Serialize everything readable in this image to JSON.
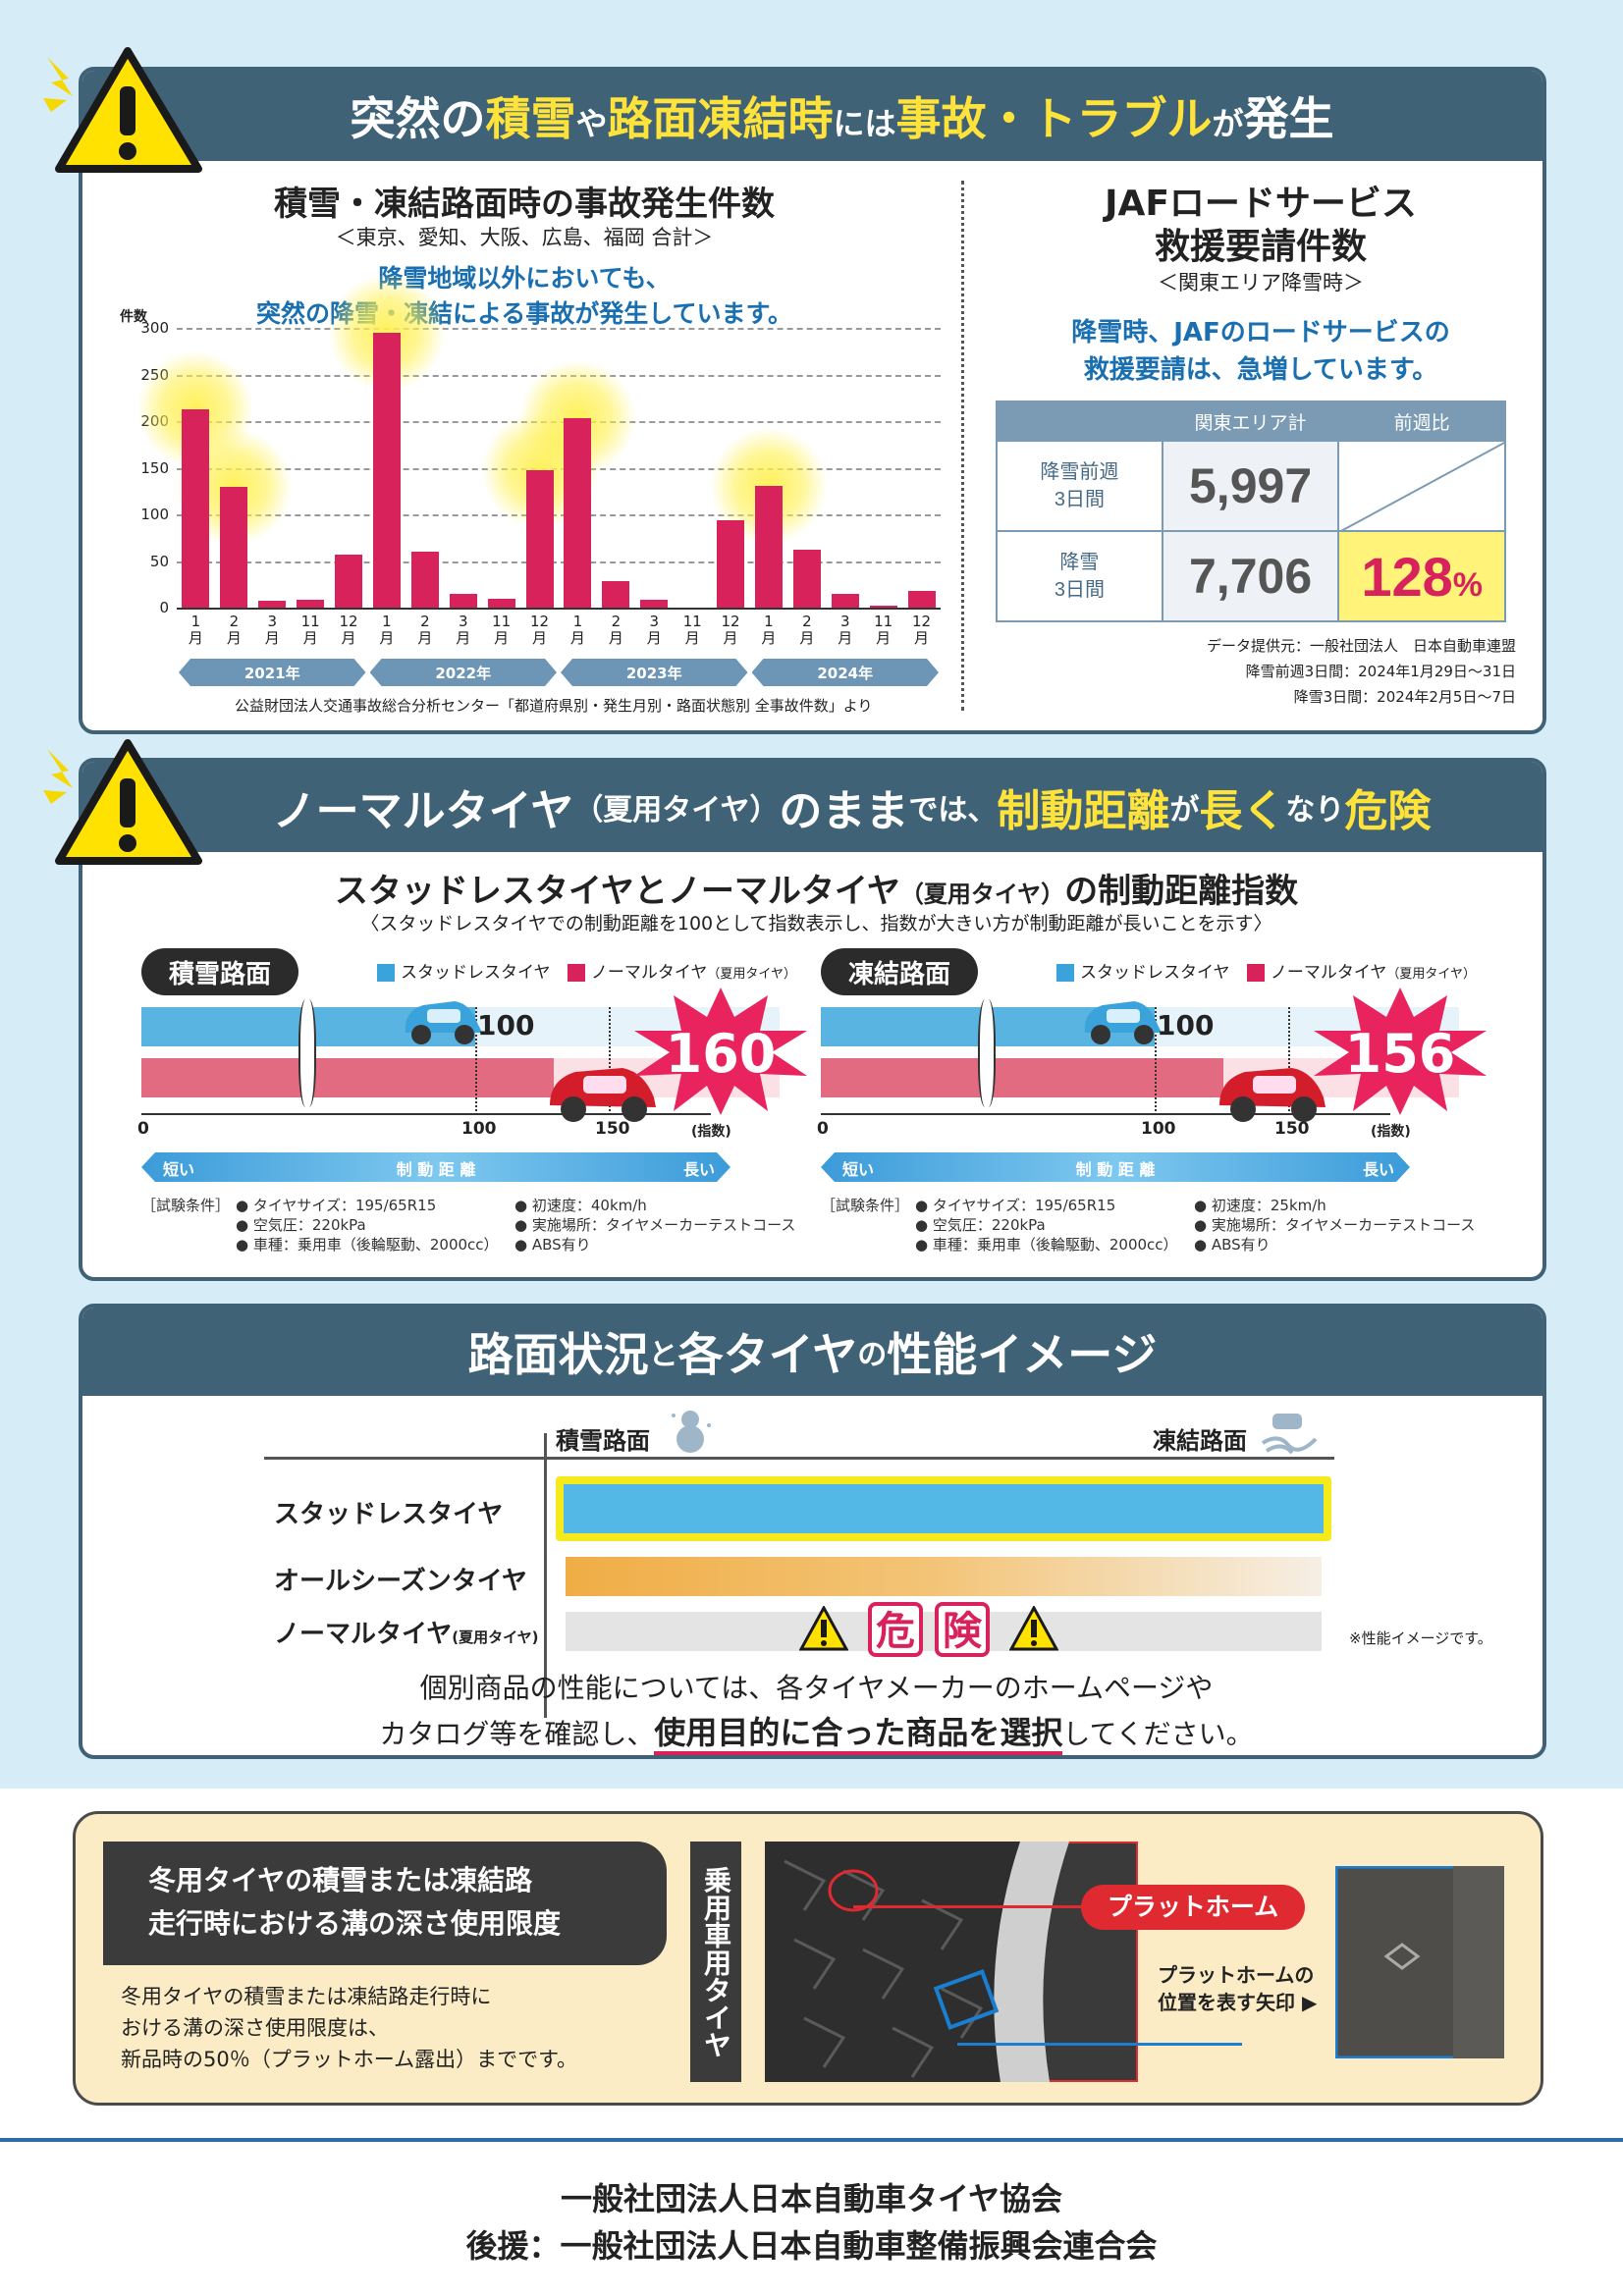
{
  "section1": {
    "heading": [
      {
        "t": "突然の",
        "c": "w"
      },
      {
        "t": "積雪",
        "c": "y"
      },
      {
        "t": "や",
        "c": "s"
      },
      {
        "t": "路面凍結時",
        "c": "y"
      },
      {
        "t": "には",
        "c": "s"
      },
      {
        "t": "事故・トラブル",
        "c": "y"
      },
      {
        "t": "が",
        "c": "s"
      },
      {
        "t": "発生",
        "c": "w"
      }
    ],
    "chart_title": "積雪・凍結路面時の事故発生件数",
    "chart_subtitle": "＜東京、愛知、大阪、広島、福岡 合計＞",
    "chart_note1": "降雪地域以外においても、",
    "chart_note2": "突然の降雪・凍結による事故が発生しています。",
    "source": "公益財団法人交通事故総合分析センター「都道府県別・発生月別・路面状態別 全事故件数」より",
    "jaf_title1": "JAFロードサービス",
    "jaf_title2": "救援要請件数",
    "jaf_subtitle": "＜関東エリア降雪時＞",
    "jaf_note1": "降雪時、JAFのロードサービスの",
    "jaf_note2": "救援要請は、急増しています。",
    "jaf_table": {
      "col1": "関東エリア計",
      "col2": "前週比",
      "row1_label1": "降雪前週",
      "row1_label2": "3日間",
      "row1_value": "5,997",
      "row2_label1": "降雪",
      "row2_label2": "3日間",
      "row2_value": "7,706",
      "row2_ratio": "128",
      "row2_ratio_unit": "%"
    },
    "jaf_source1": "データ提供元：一般社団法人　日本自動車連盟",
    "jaf_source2": "降雪前週3日間：2024年1月29日〜31日",
    "jaf_source3": "降雪3日間：2024年2月5日〜7日"
  },
  "chart_data": {
    "type": "bar",
    "ylabel": "件数",
    "ylim": [
      0,
      300
    ],
    "yticks": [
      0,
      50,
      100,
      150,
      200,
      250,
      300
    ],
    "grid": true,
    "month_labels": [
      "1",
      "2",
      "3",
      "11",
      "12",
      "1",
      "2",
      "3",
      "11",
      "12",
      "1",
      "2",
      "3",
      "11",
      "12",
      "1",
      "2",
      "3",
      "11",
      "12"
    ],
    "month_unit": "月",
    "years": [
      "2021年",
      "2022年",
      "2023年",
      "2024年"
    ],
    "categories": [
      "2021-1",
      "2021-2",
      "2021-3",
      "2021-11",
      "2021-12",
      "2022-1",
      "2022-2",
      "2022-3",
      "2022-11",
      "2022-12",
      "2023-1",
      "2023-2",
      "2023-3",
      "2023-11",
      "2023-12",
      "2024-1",
      "2024-2",
      "2024-3",
      "2024-11",
      "2024-12"
    ],
    "values": [
      213,
      130,
      7,
      8,
      57,
      295,
      60,
      15,
      10,
      147,
      203,
      28,
      8,
      0,
      94,
      131,
      62,
      15,
      2,
      18
    ],
    "highlighted": [
      0,
      1,
      5,
      9,
      10,
      15
    ],
    "bar_color": "#d7225b"
  },
  "section2": {
    "heading_a": "ノーマルタイヤ",
    "heading_b": "（夏用タイヤ）",
    "heading_c": "のまま",
    "heading_d": "では、",
    "heading_e": "制動距離",
    "heading_f": "が",
    "heading_g": "長く",
    "heading_h": "なり",
    "heading_i": "危険",
    "title_a": "スタッドレスタイヤとノーマルタイヤ",
    "title_b": "（夏用タイヤ）",
    "title_c": "の制動距離指数",
    "subtitle": "〈スタッドレスタイヤでの制動距離を100として指数表示し、指数が大きい方が制動距離が長いことを示す〉",
    "legend_studless": "スタッドレスタイヤ",
    "legend_normal": "ノーマルタイヤ",
    "legend_normal_sub": "（夏用タイヤ）",
    "axis_unit": "(指数)",
    "short": "短い",
    "long": "長い",
    "distance": "制 動 距 離",
    "cond_label": "［試験条件］",
    "snow": {
      "label": "積雪路面",
      "studless_index": "100",
      "normal_index": "160",
      "ticks": [
        "0",
        "100",
        "150"
      ],
      "cond": [
        "● タイヤサイズ：195/65R15",
        "● 空気圧：220kPa",
        "● 車種：乗用車（後輪駆動、2000cc）"
      ],
      "cond2": [
        "● 初速度：40km/h",
        "● 実施場所：タイヤメーカーテストコース",
        "● ABS有り"
      ]
    },
    "ice": {
      "label": "凍結路面",
      "studless_index": "100",
      "normal_index": "156",
      "ticks": [
        "0",
        "100",
        "150"
      ],
      "cond": [
        "● タイヤサイズ：195/65R15",
        "● 空気圧：220kPa",
        "● 車種：乗用車（後輪駆動、2000cc）"
      ],
      "cond2": [
        "● 初速度：25km/h",
        "● 実施場所：タイヤメーカーテストコース",
        "● ABS有り"
      ]
    },
    "colors": {
      "studless": "#3aa3db",
      "normal": "#d7225b"
    }
  },
  "section3": {
    "heading_a": "路面状況",
    "heading_b": "と",
    "heading_c": "各タイヤ",
    "heading_d": "の",
    "heading_e": "性能イメージ",
    "col_snow": "積雪路面",
    "col_ice": "凍結路面",
    "row1": "スタッドレスタイヤ",
    "row2": "オールシーズンタイヤ",
    "row3": "ノーマルタイヤ",
    "row3_sub": "(夏用タイヤ)",
    "danger1": "危",
    "danger2": "険",
    "note": "※性能イメージです。",
    "msg1": "個別商品の性能については、各タイヤメーカーのホームページや",
    "msg2a": "カタログ等を確認し、",
    "msg2b": "使用目的に合った商品を選択",
    "msg2c": "してください。"
  },
  "section4": {
    "box_title1": "冬用タイヤの積雪または凍結路",
    "box_title2": "走行時における溝の深さ使用限度",
    "body1": "冬用タイヤの積雪または凍結路走行時に",
    "body2": "おける溝の深さ使用限度は、",
    "body3": "新品時の50％（プラットホーム露出）までです。",
    "vertical": "乗用車用タイヤ",
    "platform": "プラットホーム",
    "arrow1": "プラットホームの",
    "arrow2": "位置を表す矢印"
  },
  "footer": {
    "line1": "一般社団法人日本自動車タイヤ協会",
    "line2": "後援：一般社団法人日本自動車整備振興会連合会"
  }
}
